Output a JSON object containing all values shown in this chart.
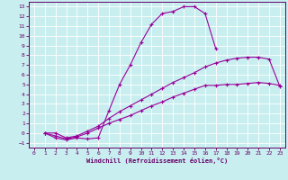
{
  "xlabel": "Windchill (Refroidissement éolien,°C)",
  "bg_color": "#c8eef0",
  "line_color": "#990099",
  "grid_color": "#ffffff",
  "xlim": [
    -0.5,
    23.5
  ],
  "ylim": [
    -1.5,
    13.5
  ],
  "curve1_x": [
    1,
    2,
    3,
    4,
    5,
    6,
    7,
    8,
    9,
    10,
    11,
    12,
    13,
    14,
    15,
    16,
    17
  ],
  "curve1_y": [
    0.0,
    -0.5,
    -0.7,
    -0.5,
    -0.6,
    -0.5,
    2.3,
    5.0,
    7.0,
    9.3,
    11.2,
    12.3,
    12.5,
    13.0,
    13.0,
    12.3,
    8.7
  ],
  "curve2_x": [
    1,
    2,
    3,
    4,
    5,
    6,
    7,
    8,
    9,
    10,
    11,
    12,
    13,
    14,
    15,
    16,
    17,
    18,
    19,
    20,
    21,
    22,
    23
  ],
  "curve2_y": [
    0.0,
    0.0,
    -0.5,
    -0.3,
    0.2,
    0.7,
    1.5,
    2.2,
    2.8,
    3.4,
    4.0,
    4.6,
    5.2,
    5.7,
    6.2,
    6.8,
    7.2,
    7.5,
    7.7,
    7.8,
    7.8,
    7.6,
    4.8
  ],
  "curve3_x": [
    1,
    2,
    3,
    4,
    5,
    6,
    7,
    8,
    9,
    10,
    11,
    12,
    13,
    14,
    15,
    16,
    17,
    18,
    19,
    20,
    21,
    22,
    23
  ],
  "curve3_y": [
    0.0,
    -0.3,
    -0.6,
    -0.4,
    0.0,
    0.5,
    1.0,
    1.4,
    1.8,
    2.3,
    2.8,
    3.2,
    3.7,
    4.1,
    4.5,
    4.9,
    4.9,
    5.0,
    5.0,
    5.1,
    5.2,
    5.1,
    4.9
  ]
}
